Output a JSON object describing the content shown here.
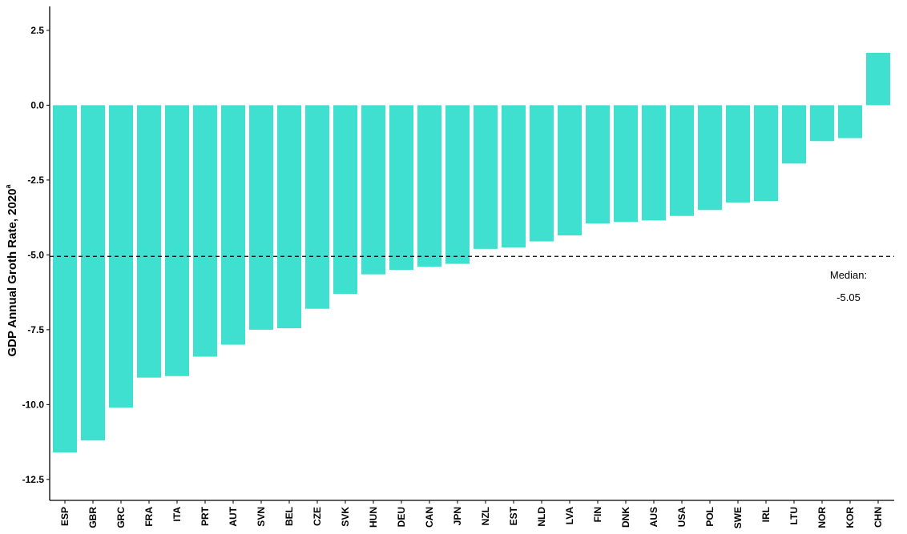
{
  "chart_data": {
    "type": "bar",
    "categories": [
      "ESP",
      "GBR",
      "GRC",
      "FRA",
      "ITA",
      "PRT",
      "AUT",
      "SVN",
      "BEL",
      "CZE",
      "SVK",
      "HUN",
      "DEU",
      "CAN",
      "JPN",
      "NZL",
      "EST",
      "NLD",
      "LVA",
      "FIN",
      "DNK",
      "AUS",
      "USA",
      "POL",
      "SWE",
      "IRL",
      "LTU",
      "NOR",
      "KOR",
      "CHN"
    ],
    "values": [
      -11.6,
      -11.2,
      -10.1,
      -9.1,
      -9.05,
      -8.4,
      -8.0,
      -7.5,
      -7.45,
      -6.8,
      -6.3,
      -5.65,
      -5.5,
      -5.4,
      -5.3,
      -4.8,
      -4.75,
      -4.55,
      -4.35,
      -3.95,
      -3.9,
      -3.85,
      -3.7,
      -3.5,
      -3.25,
      -3.2,
      -1.95,
      -1.2,
      -1.1,
      1.75
    ],
    "title": "",
    "xlabel": "",
    "ylabel": "GDP Annual Groth Rate, 2020",
    "ylabel_superscript": "a",
    "ylim": [
      -13.2,
      3.3
    ],
    "yticks": [
      2.5,
      0.0,
      -2.5,
      -5.0,
      -7.5,
      -10.0,
      -12.5
    ],
    "ytick_labels": [
      "2.5",
      "0.0",
      "-2.5",
      "-5.0",
      "-7.5",
      "-10.0",
      "-12.5"
    ],
    "grid": false,
    "bar_color": "#40E0D0",
    "median_line": {
      "value": -5.05,
      "style": "dashed",
      "label_line1": "Median:",
      "label_line2": "-5.05"
    }
  }
}
